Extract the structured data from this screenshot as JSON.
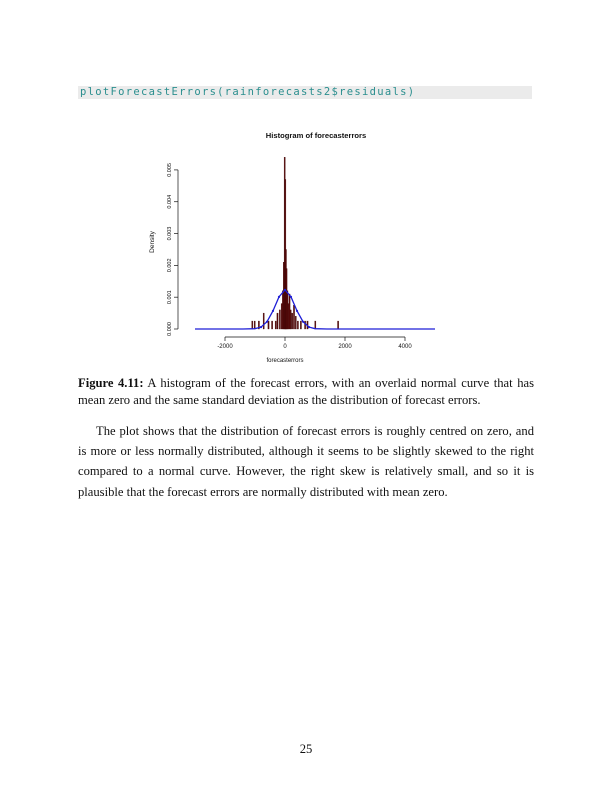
{
  "code": {
    "line": "plotForecastErrors(rainforecasts2$residuals)"
  },
  "figure": {
    "caption_label": "Figure 4.11:",
    "caption_text": "A histogram of the forecast errors, with an overlaid normal curve that has mean zero and the same standard deviation as the distribution of forecast errors."
  },
  "chart_data": {
    "type": "bar",
    "title": "Histogram of forecasterrors",
    "xlabel": "forecasterrors",
    "ylabel": "Density",
    "xlim": [
      -3000,
      5000
    ],
    "ylim": [
      0,
      0.0055
    ],
    "x_ticks": [
      -2000,
      0,
      2000,
      4000
    ],
    "x_tick_labels": [
      "-2000",
      "0",
      "2000",
      "4000"
    ],
    "y_ticks": [
      0.0,
      0.001,
      0.002,
      0.003,
      0.004,
      0.005
    ],
    "y_tick_labels": [
      "0.000",
      "0.001",
      "0.002",
      "0.003",
      "0.004",
      "0.005"
    ],
    "grid": false,
    "bar_color": "#5a0a0a",
    "bin_width": 20,
    "bins": [
      {
        "x": -1100,
        "density": 0.00025
      },
      {
        "x": -1020,
        "density": 0.00025
      },
      {
        "x": -880,
        "density": 0.00025
      },
      {
        "x": -720,
        "density": 0.0005
      },
      {
        "x": -560,
        "density": 0.00025
      },
      {
        "x": -440,
        "density": 0.00025
      },
      {
        "x": -320,
        "density": 0.00025
      },
      {
        "x": -260,
        "density": 0.0005
      },
      {
        "x": -180,
        "density": 0.0006
      },
      {
        "x": -120,
        "density": 0.0008
      },
      {
        "x": -80,
        "density": 0.0012
      },
      {
        "x": -50,
        "density": 0.0021
      },
      {
        "x": -20,
        "density": 0.0054
      },
      {
        "x": 0,
        "density": 0.0047
      },
      {
        "x": 20,
        "density": 0.0025
      },
      {
        "x": 40,
        "density": 0.0019
      },
      {
        "x": 70,
        "density": 0.0012
      },
      {
        "x": 100,
        "density": 0.0008
      },
      {
        "x": 140,
        "density": 0.0011
      },
      {
        "x": 180,
        "density": 0.0006
      },
      {
        "x": 230,
        "density": 0.0005
      },
      {
        "x": 290,
        "density": 0.00075
      },
      {
        "x": 350,
        "density": 0.0004
      },
      {
        "x": 420,
        "density": 0.00025
      },
      {
        "x": 520,
        "density": 0.00025
      },
      {
        "x": 660,
        "density": 0.00025
      },
      {
        "x": 740,
        "density": 0.00025
      },
      {
        "x": 1000,
        "density": 0.00025
      },
      {
        "x": 1760,
        "density": 0.00025
      }
    ],
    "normal_curve": {
      "mean": 0,
      "sd": 325,
      "color": "#1f1fd6",
      "points": [
        {
          "x": -3000,
          "y": 0.0
        },
        {
          "x": -1400,
          "y": 0.0
        },
        {
          "x": -1000,
          "y": 1e-05
        },
        {
          "x": -800,
          "y": 6e-05
        },
        {
          "x": -600,
          "y": 0.00023
        },
        {
          "x": -400,
          "y": 0.00057
        },
        {
          "x": -200,
          "y": 0.00101
        },
        {
          "x": 0,
          "y": 0.00123
        },
        {
          "x": 200,
          "y": 0.00101
        },
        {
          "x": 400,
          "y": 0.00057
        },
        {
          "x": 600,
          "y": 0.00023
        },
        {
          "x": 800,
          "y": 6e-05
        },
        {
          "x": 1000,
          "y": 1e-05
        },
        {
          "x": 1400,
          "y": 0.0
        },
        {
          "x": 5000,
          "y": 0.0
        }
      ]
    }
  },
  "paragraph": {
    "text": "The plot shows that the distribution of forecast errors is roughly centred on zero, and is more or less normally distributed, although it seems to be slightly skewed to the right compared to a normal curve. However, the right skew is relatively small, and so it is plausible that the forecast errors are normally distributed with mean zero."
  },
  "page": {
    "number": "25"
  }
}
